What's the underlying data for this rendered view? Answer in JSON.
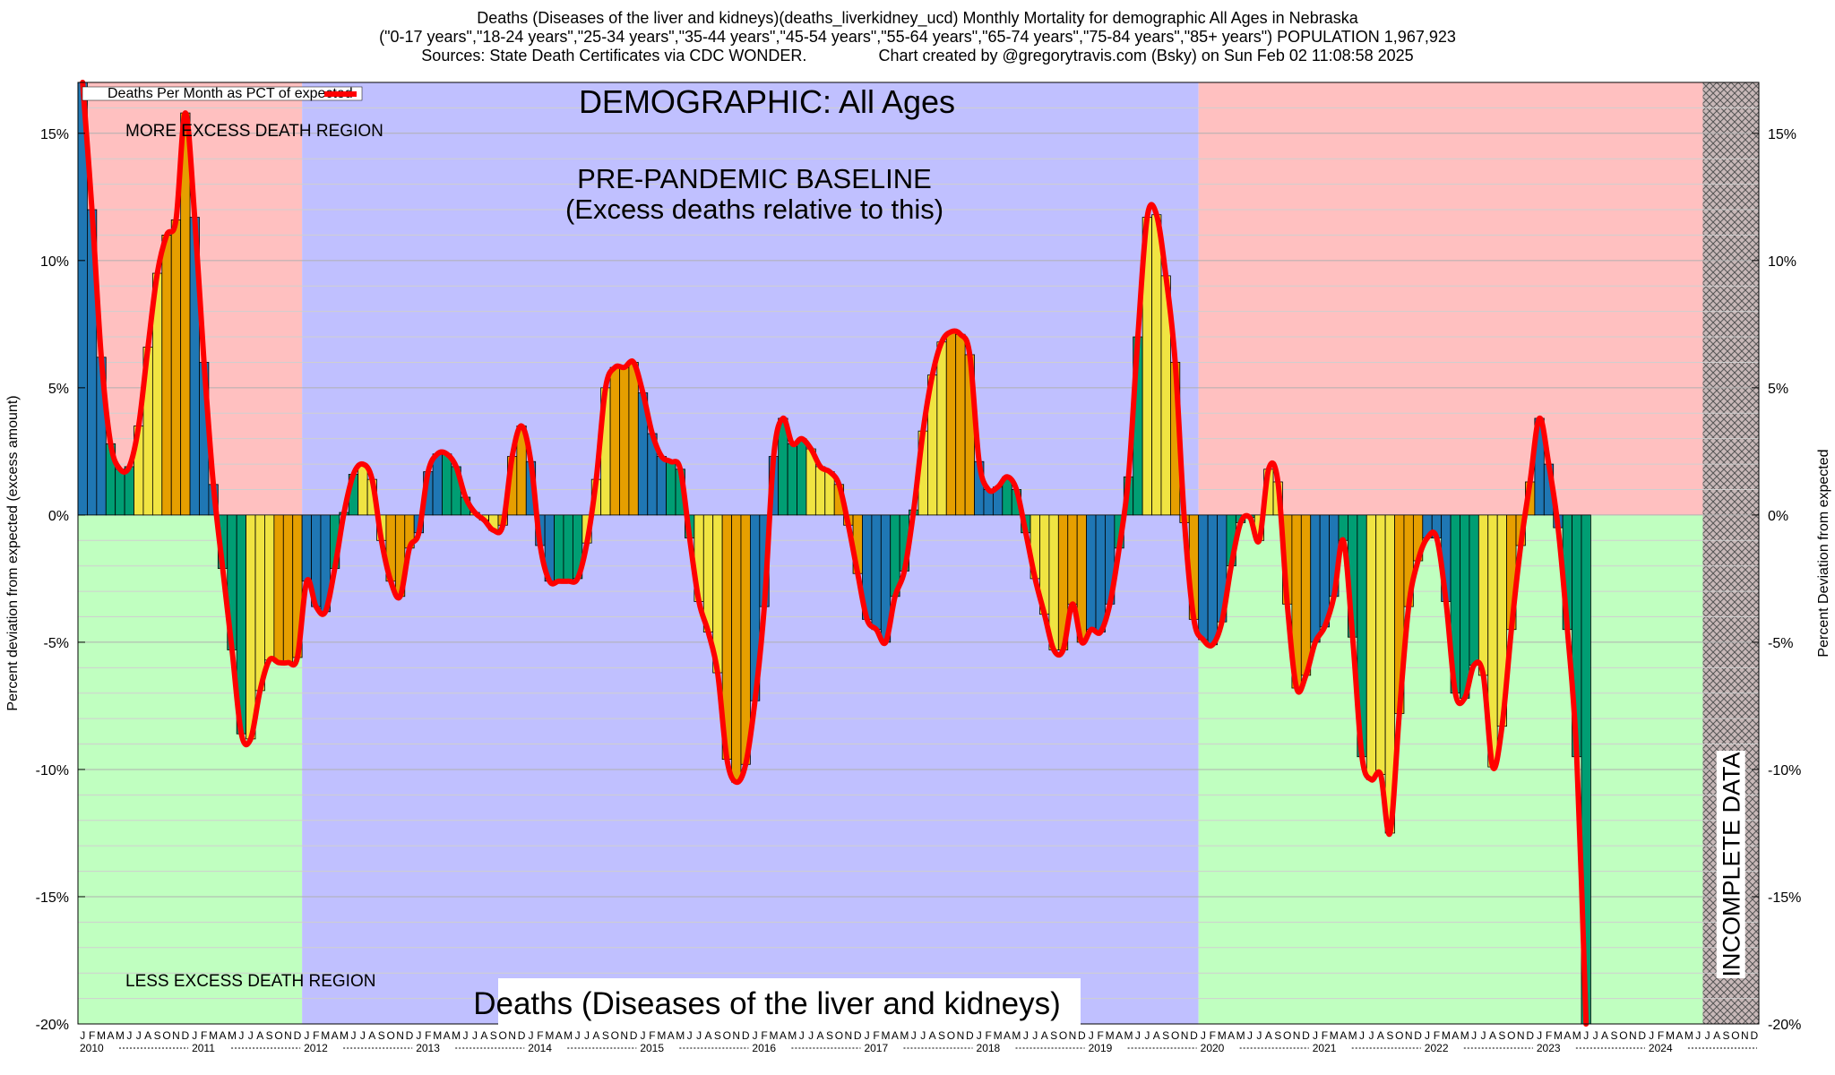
{
  "title_lines": [
    "Deaths (Diseases of the liver and kidneys)(deaths_liverkidney_ucd) Monthly Mortality for demographic All Ages in Nebraska",
    "(\"0-17 years\",\"18-24 years\",\"25-34 years\",\"35-44 years\",\"45-54 years\",\"55-64 years\",\"65-74 years\",\"75-84 years\",\"85+ years\") POPULATION 1,967,923",
    "Sources: State Death Certificates via CDC WONDER.                Chart created by @gregorytravis.com (Bsky) on Sun Feb 02 11:08:58 2025"
  ],
  "chart_data": {
    "type": "bar",
    "series": [
      {
        "name": "Deaths Per Month as PCT of expected",
        "color": "#ff0000"
      }
    ],
    "legend_position": "top-left",
    "ylabel_left": "Percent deviation from expected (excess amount)",
    "ylabel_right": "Percent Deviation from expected",
    "ylim": [
      -20,
      17
    ],
    "yticks": [
      15,
      10,
      5,
      0,
      -5,
      -10,
      -15,
      -20
    ],
    "ytick_labels": [
      "15%",
      "10%",
      "5%",
      "0%",
      "-5%",
      "-10%",
      "-15%",
      "-20%"
    ],
    "grid": true,
    "x_start": "2010-01",
    "month_letters": [
      "J",
      "F",
      "M",
      "A",
      "M",
      "J",
      "J",
      "A",
      "S",
      "O",
      "N",
      "D"
    ],
    "years": [
      "2010",
      "2011",
      "2012",
      "2013",
      "2014",
      "2015",
      "2016",
      "2017",
      "2018",
      "2019",
      "2020",
      "2021",
      "2022",
      "2023",
      "2024"
    ],
    "bar_colors": [
      "#1f77b4",
      "#1f77b4",
      "#1f77b4",
      "#009e73",
      "#009e73",
      "#009e73",
      "#f0e442",
      "#f0e442",
      "#f0e442",
      "#e69f00",
      "#e69f00",
      "#e69f00"
    ],
    "regions": [
      {
        "start": "2010-01",
        "end": "2011-12",
        "label": "MORE EXCESS DEATH REGION / LESS EXCESS DEATH REGION"
      },
      {
        "start": "2012-01",
        "end": "2019-12",
        "label": "PRE-PANDEMIC BASELINE"
      },
      {
        "start": "2020-01",
        "end": "2024-06",
        "label": ""
      },
      {
        "start": "2024-07",
        "end": "2024-12",
        "label": "INCOMPLETE DATA"
      }
    ],
    "values": [
      17.0,
      12.0,
      6.2,
      2.8,
      1.8,
      1.9,
      3.5,
      6.6,
      9.5,
      11.0,
      11.6,
      15.8,
      11.7,
      6.0,
      1.2,
      -2.1,
      -5.3,
      -8.6,
      -8.8,
      -6.9,
      -5.7,
      -5.8,
      -5.8,
      -5.6,
      -2.6,
      -3.6,
      -3.8,
      -2.1,
      0.1,
      1.6,
      2.0,
      1.4,
      -1.0,
      -2.6,
      -3.2,
      -1.3,
      -0.7,
      1.7,
      2.4,
      2.4,
      1.9,
      0.7,
      0.1,
      -0.2,
      -0.6,
      -0.4,
      2.3,
      3.5,
      2.1,
      -1.2,
      -2.6,
      -2.6,
      -2.6,
      -2.5,
      -1.1,
      1.4,
      5.0,
      5.8,
      5.8,
      6.0,
      4.8,
      3.2,
      2.3,
      2.1,
      1.8,
      -0.9,
      -3.4,
      -4.6,
      -6.2,
      -9.6,
      -10.5,
      -9.8,
      -7.3,
      -3.6,
      2.3,
      3.8,
      2.8,
      3.0,
      2.6,
      1.9,
      1.7,
      1.2,
      -0.4,
      -2.3,
      -4.1,
      -4.5,
      -5.0,
      -3.2,
      -2.2,
      0.2,
      3.3,
      5.5,
      6.8,
      7.2,
      7.1,
      6.3,
      2.1,
      1.0,
      1.1,
      1.5,
      1.0,
      -0.7,
      -2.5,
      -3.9,
      -5.3,
      -5.3,
      -3.5,
      -5.0,
      -4.5,
      -4.6,
      -3.5,
      -1.3,
      1.5,
      7.0,
      11.7,
      11.8,
      9.4,
      6.0,
      -0.3,
      -4.1,
      -4.9,
      -5.1,
      -4.2,
      -2.0,
      -0.3,
      -0.1,
      -1.0,
      1.8,
      1.3,
      -3.5,
      -6.8,
      -6.3,
      -5.0,
      -4.4,
      -3.2,
      -1.0,
      -4.8,
      -9.5,
      -10.4,
      -10.2,
      -12.5,
      -7.8,
      -3.6,
      -1.8,
      -0.9,
      -0.9,
      -3.4,
      -7.0,
      -7.2,
      -5.9,
      -6.3,
      -9.9,
      -8.3,
      -4.5,
      -1.2,
      1.3,
      3.8,
      2.0,
      -0.5,
      -4.5,
      -9.5,
      -20.0
    ]
  }
}
